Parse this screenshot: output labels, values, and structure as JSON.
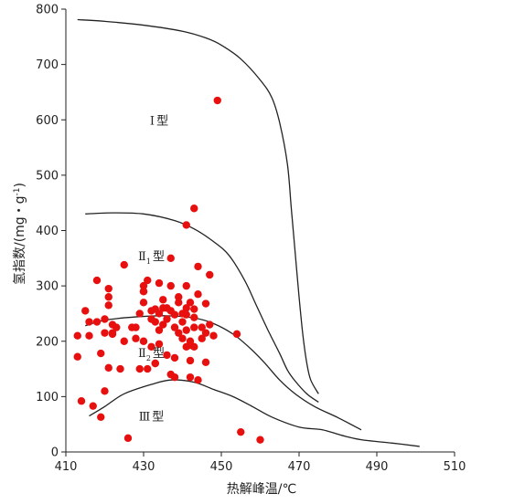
{
  "chart_data": {
    "type": "scatter",
    "xlabel": "热解峰温/℃",
    "ylabel": "氢指数/(mg·g⁻¹)",
    "ylabel_parts": {
      "main": "氢指数/(mg・g",
      "sup": "-1",
      "end": ")"
    },
    "xlim": [
      410,
      510
    ],
    "ylim": [
      0,
      800
    ],
    "xticks": [
      "410",
      "430",
      "450",
      "470",
      "490",
      "510"
    ],
    "yticks": [
      "0",
      "100",
      "200",
      "300",
      "400",
      "500",
      "600",
      "700",
      "800"
    ],
    "grid": false,
    "colors": {
      "points": "#e8100f",
      "curves": "#222222"
    },
    "type_labels": [
      {
        "main": "Ⅰ",
        "sub": "",
        "suffix": "型",
        "x": 434,
        "y": 600
      },
      {
        "main": "Ⅱ",
        "sub": "1",
        "suffix": "型",
        "x": 432,
        "y": 355
      },
      {
        "main": "Ⅱ",
        "sub": "2",
        "suffix": "型",
        "x": 432,
        "y": 180
      },
      {
        "main": "Ⅲ",
        "sub": "",
        "suffix": "型",
        "x": 432,
        "y": 65
      }
    ],
    "curves": [
      {
        "points": [
          [
            413,
            781
          ],
          [
            420,
            778
          ],
          [
            430,
            771
          ],
          [
            440,
            760
          ],
          [
            446,
            748
          ],
          [
            450,
            735
          ],
          [
            455,
            710
          ],
          [
            460,
            672
          ],
          [
            463,
            640
          ],
          [
            465,
            595
          ],
          [
            467,
            520
          ],
          [
            468,
            440
          ],
          [
            469,
            360
          ],
          [
            470,
            280
          ],
          [
            471,
            210
          ],
          [
            472,
            160
          ],
          [
            473,
            130
          ],
          [
            475,
            105
          ]
        ]
      },
      {
        "points": [
          [
            415,
            430
          ],
          [
            422,
            432
          ],
          [
            430,
            430
          ],
          [
            438,
            418
          ],
          [
            443,
            403
          ],
          [
            448,
            380
          ],
          [
            452,
            355
          ],
          [
            456,
            310
          ],
          [
            459,
            265
          ],
          [
            462,
            220
          ],
          [
            465,
            178
          ],
          [
            467,
            148
          ],
          [
            469,
            128
          ],
          [
            472,
            105
          ],
          [
            475,
            90
          ]
        ]
      },
      {
        "points": [
          [
            415,
            228
          ],
          [
            420,
            238
          ],
          [
            428,
            244
          ],
          [
            436,
            246
          ],
          [
            443,
            242
          ],
          [
            448,
            232
          ],
          [
            453,
            213
          ],
          [
            457,
            190
          ],
          [
            461,
            162
          ],
          [
            465,
            130
          ],
          [
            469,
            105
          ],
          [
            474,
            82
          ],
          [
            480,
            62
          ],
          [
            486,
            40
          ]
        ]
      },
      {
        "points": [
          [
            416,
            65
          ],
          [
            420,
            82
          ],
          [
            425,
            105
          ],
          [
            432,
            122
          ],
          [
            437,
            130
          ],
          [
            443,
            126
          ],
          [
            448,
            113
          ],
          [
            453,
            100
          ],
          [
            458,
            82
          ],
          [
            463,
            63
          ],
          [
            470,
            45
          ],
          [
            476,
            40
          ],
          [
            481,
            30
          ],
          [
            486,
            22
          ],
          [
            494,
            16
          ],
          [
            501,
            10
          ]
        ]
      }
    ],
    "series": [
      {
        "x": [
          413,
          413,
          414,
          415,
          416,
          416,
          417,
          418,
          419,
          420,
          421,
          418,
          419,
          420,
          420,
          425,
          421,
          421,
          422,
          422,
          421,
          422,
          423,
          424,
          425,
          426,
          428,
          429,
          429,
          430,
          430,
          430,
          428,
          430,
          431,
          432,
          432,
          432,
          433,
          433,
          433,
          434,
          434,
          434,
          434,
          435,
          435,
          435,
          436,
          436,
          436,
          437,
          437,
          437,
          437,
          438,
          438,
          438,
          438,
          439,
          439,
          439,
          440,
          440,
          440,
          441,
          441,
          441,
          442,
          442,
          442,
          443,
          443,
          443,
          444,
          444,
          445,
          445,
          446,
          446,
          447,
          447,
          448,
          441,
          444,
          443,
          443,
          446,
          441,
          442,
          449,
          441,
          442,
          433,
          427,
          430,
          431,
          454,
          455,
          460
        ],
        "y": [
          172,
          210,
          92,
          255,
          235,
          210,
          83,
          235,
          178,
          110,
          152,
          310,
          63,
          240,
          215,
          338,
          280,
          295,
          230,
          213,
          265,
          215,
          225,
          150,
          200,
          25,
          205,
          150,
          250,
          290,
          270,
          300,
          225,
          200,
          310,
          190,
          240,
          255,
          235,
          258,
          160,
          250,
          305,
          195,
          220,
          275,
          230,
          260,
          240,
          260,
          175,
          255,
          140,
          350,
          300,
          248,
          225,
          135,
          170,
          270,
          215,
          280,
          205,
          250,
          235,
          190,
          220,
          300,
          200,
          270,
          135,
          258,
          225,
          243,
          335,
          285,
          205,
          225,
          215,
          268,
          320,
          230,
          210,
          410,
          130,
          440,
          190,
          162,
          248,
          165,
          635,
          260,
          193,
          160,
          225,
          290,
          150,
          213,
          36,
          22
        ]
      }
    ]
  }
}
